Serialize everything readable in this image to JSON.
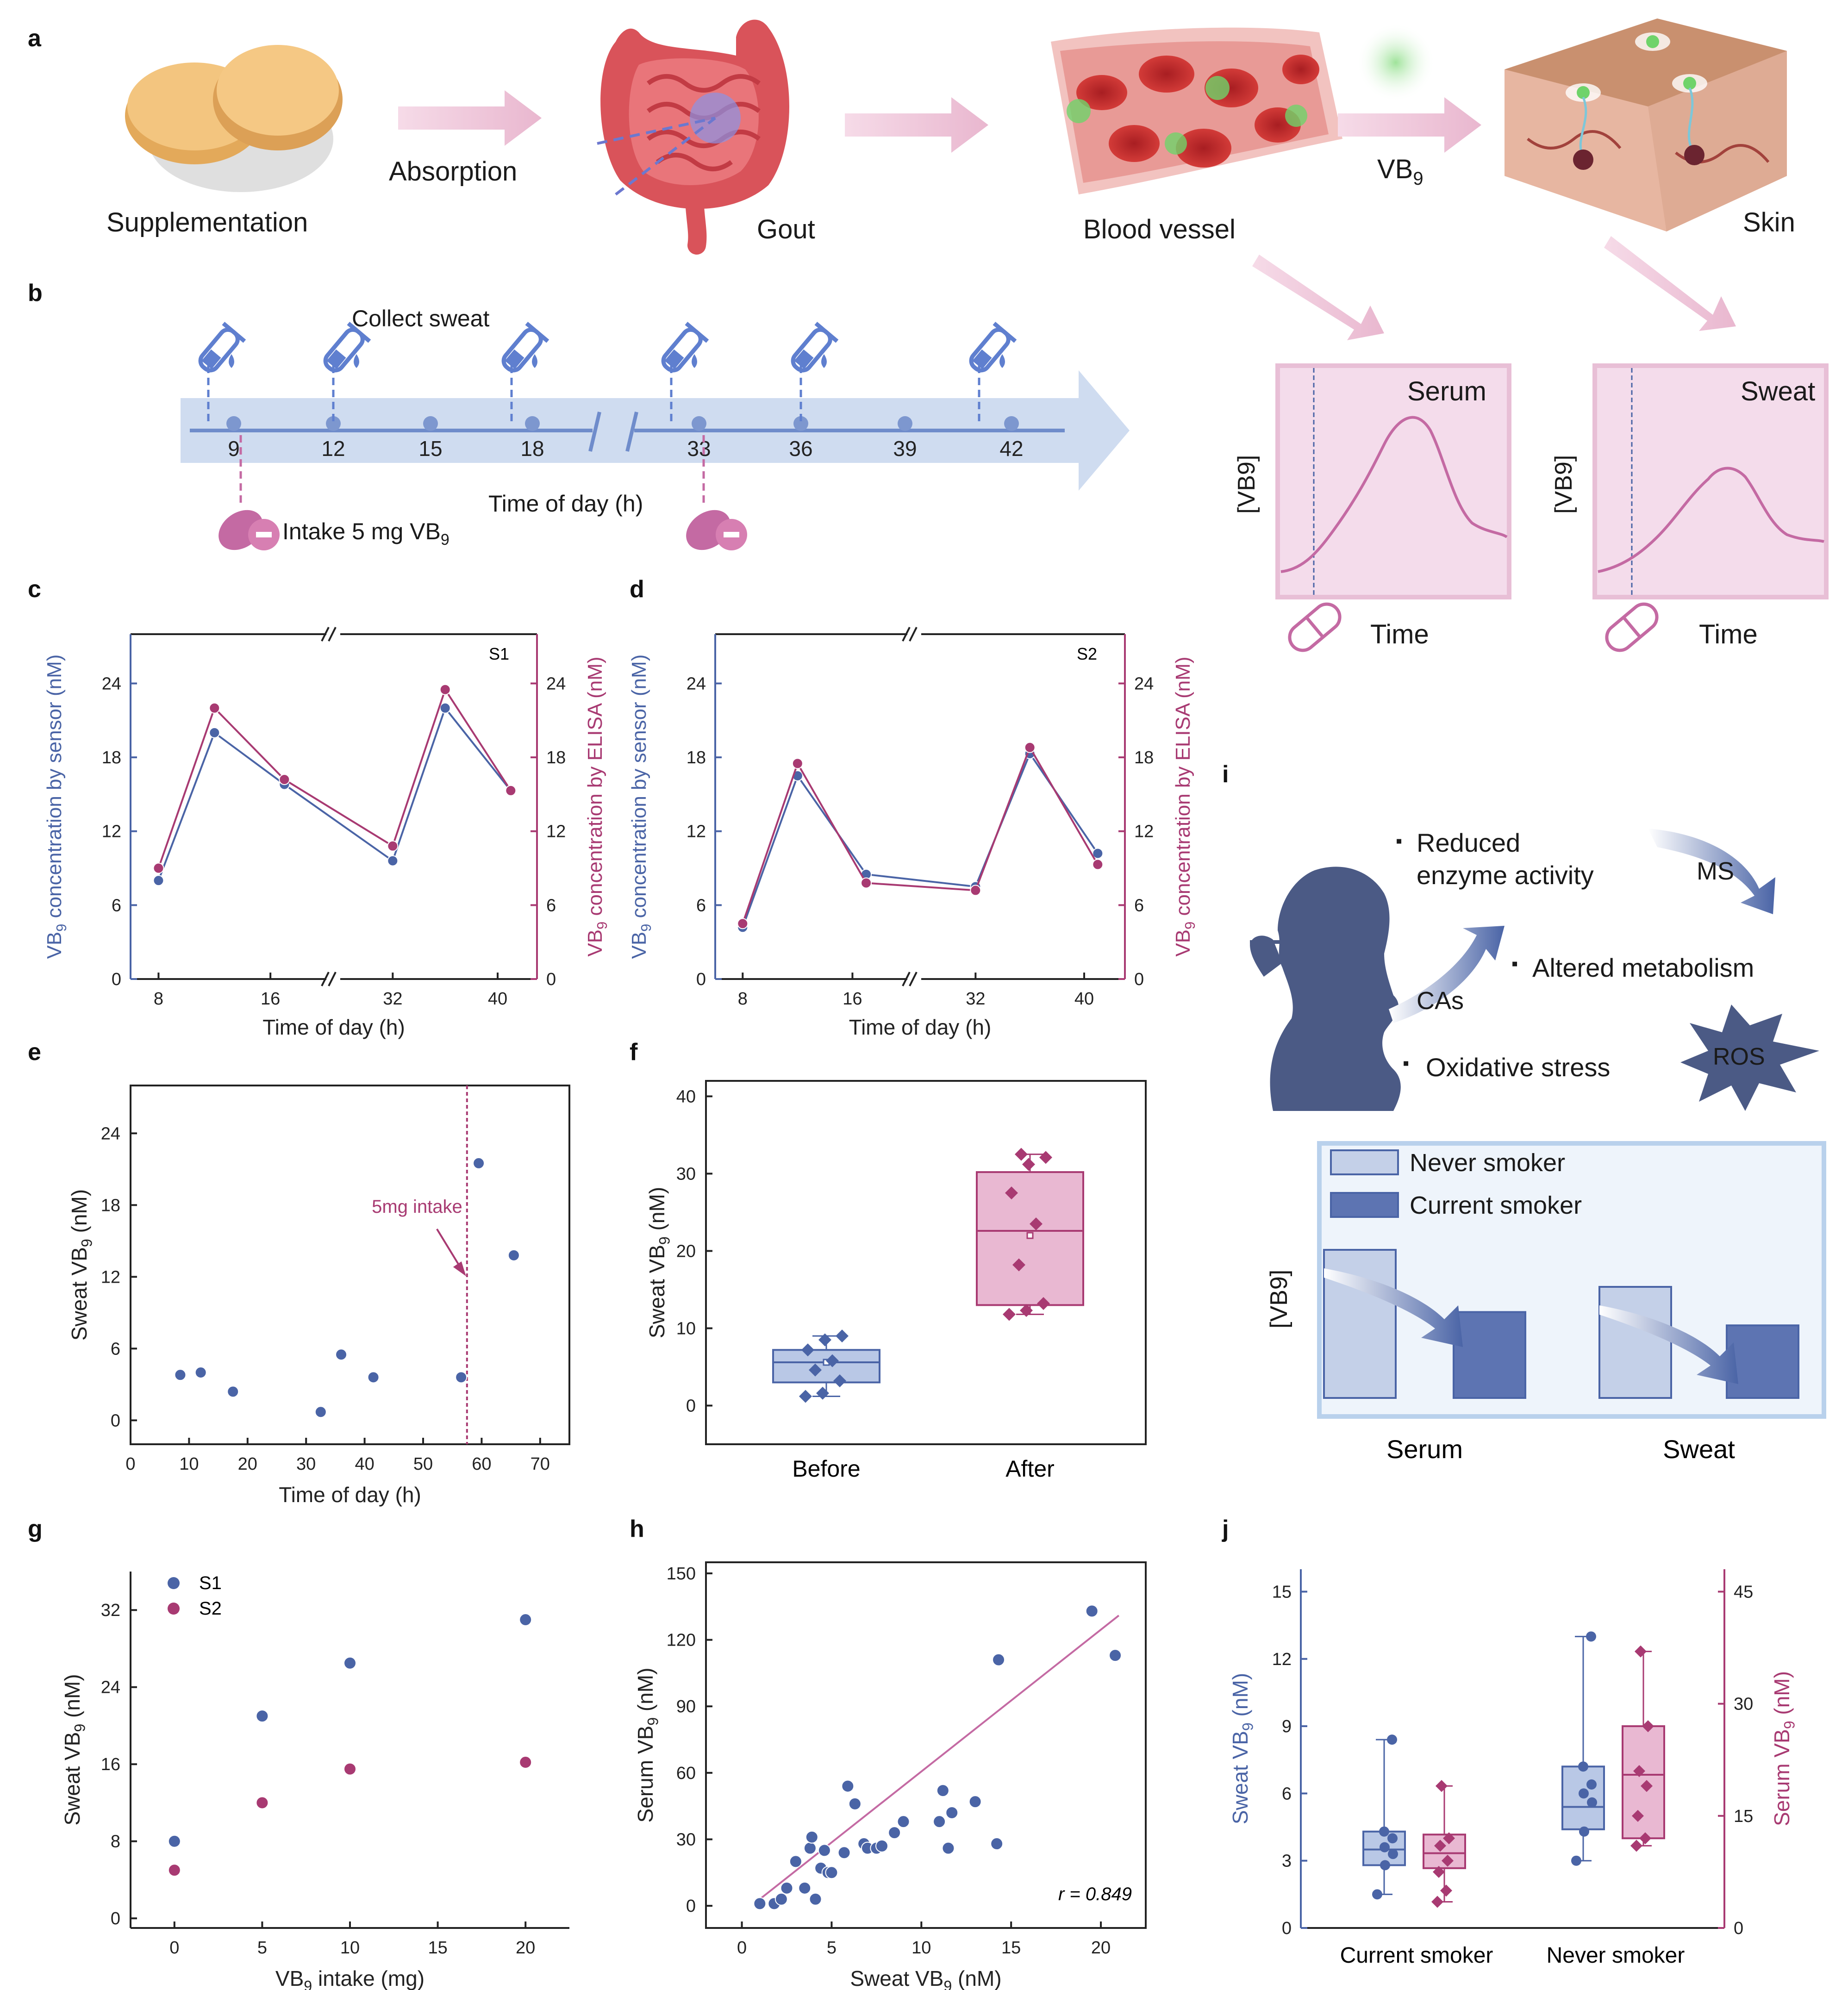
{
  "panel_labels": [
    "a",
    "b",
    "c",
    "d",
    "e",
    "f",
    "g",
    "h",
    "i",
    "j"
  ],
  "panel_a": {
    "supplementation": "Supplementation",
    "absorption": "Absorption",
    "gout": "Gout",
    "blood_vessel": "Blood vessel",
    "vb9": "VB",
    "vb9_sub": "9",
    "skin": "Skin",
    "serum_box": {
      "title": "Serum",
      "ylabel": "[VB9]",
      "xlabel": "Time"
    },
    "sweat_box": {
      "title": "Sweat",
      "ylabel": "[VB9]",
      "xlabel": "Time"
    }
  },
  "panel_b": {
    "collect": "Collect sweat",
    "intake": "Intake 5 mg VB",
    "intake_sub": "9",
    "xlabel": "Time of day (h)",
    "ticks": [
      "9",
      "12",
      "15",
      "18",
      "33",
      "36",
      "39",
      "42"
    ]
  },
  "colors": {
    "blue": "#4a64a6",
    "magenta": "#a83a72",
    "pink": "#e6b6d2",
    "lightblue": "#c4d3ea",
    "boxblue": "#b9c8e6",
    "boxpink": "#e9b8d2"
  },
  "chart_data": [
    {
      "id": "c",
      "type": "line",
      "tag": "S1",
      "x": [
        8,
        12,
        17,
        32,
        36,
        41
      ],
      "series": [
        {
          "name": "sensor",
          "values": [
            8,
            20,
            15.8,
            9.6,
            22,
            15.3
          ]
        },
        {
          "name": "ELISA",
          "values": [
            9,
            22,
            16.2,
            10.8,
            23.5,
            15.3
          ]
        }
      ],
      "xticks": [
        "8",
        "16",
        "32",
        "40"
      ],
      "yticks": [
        "0",
        "6",
        "12",
        "18",
        "24"
      ],
      "xlabel": "Time of day (h)",
      "ylabel_left": "VB9 concentration by sensor (nM)",
      "ylabel_right": "VB9 concentration by ELISA (nM)",
      "ylim": [
        0,
        28
      ]
    },
    {
      "id": "d",
      "type": "line",
      "tag": "S2",
      "x": [
        8,
        12,
        17,
        32,
        36,
        41
      ],
      "series": [
        {
          "name": "sensor",
          "values": [
            4.2,
            16.5,
            8.5,
            7.5,
            18.3,
            10.2
          ]
        },
        {
          "name": "ELISA",
          "values": [
            4.5,
            17.5,
            7.8,
            7.2,
            18.8,
            9.3
          ]
        }
      ],
      "xticks": [
        "8",
        "16",
        "32",
        "40"
      ],
      "yticks": [
        "0",
        "6",
        "12",
        "18",
        "24"
      ],
      "xlabel": "Time of day (h)",
      "ylabel_left": "VB9 concentration by sensor (nM)",
      "ylabel_right": "VB9 concentration by ELISA (nM)",
      "ylim": [
        0,
        28
      ]
    },
    {
      "id": "e",
      "type": "scatter",
      "x": [
        8.5,
        12,
        17.5,
        32.5,
        36,
        41.5,
        56.5,
        59.5,
        65.5
      ],
      "values": [
        3.8,
        4,
        2.4,
        0.7,
        5.5,
        3.6,
        3.6,
        21.5,
        13.8
      ],
      "xticks": [
        "0",
        "10",
        "20",
        "30",
        "40",
        "50",
        "60",
        "70"
      ],
      "yticks": [
        "0",
        "6",
        "12",
        "18",
        "24"
      ],
      "xlabel": "Time of day (h)",
      "ylabel": "Sweat VB9 (nM)",
      "annotation": "5mg intake",
      "vline": 57.5,
      "xlim": [
        0,
        75
      ],
      "ylim": [
        -2,
        28
      ]
    },
    {
      "id": "f",
      "type": "box",
      "categories": [
        "Before",
        "After"
      ],
      "boxes": [
        {
          "q1": 3,
          "median": 5.6,
          "q3": 7.2,
          "min": 1.2,
          "max": 9,
          "mean": 5.6
        },
        {
          "q1": 13,
          "median": 22.6,
          "q3": 30.2,
          "min": 11.8,
          "max": 32.5,
          "mean": 22
        }
      ],
      "points": [
        [
          1.2,
          1.6,
          3.2,
          4.6,
          5.8,
          7.2,
          8.5,
          9
        ],
        [
          11.8,
          12.3,
          13.2,
          18.2,
          23.5,
          27.5,
          31.2,
          32.1,
          32.5
        ]
      ],
      "yticks": [
        "0",
        "10",
        "20",
        "30",
        "40"
      ],
      "ylabel": "Sweat VB9 (nM)",
      "ylim": [
        -5,
        42
      ]
    },
    {
      "id": "g",
      "type": "scatter",
      "legend": [
        "S1",
        "S2"
      ],
      "x": [
        0,
        5,
        10,
        20
      ],
      "series": [
        {
          "name": "S1",
          "values": [
            8,
            21,
            26.5,
            31
          ]
        },
        {
          "name": "S2",
          "values": [
            5,
            12,
            15.5,
            16.2
          ]
        }
      ],
      "xticks": [
        "0",
        "5",
        "10",
        "15",
        "20"
      ],
      "yticks": [
        "0",
        "8",
        "16",
        "24",
        "32"
      ],
      "xlabel": "VB9 intake (mg)",
      "ylabel": "Sweat VB9 (nM)",
      "xlim": [
        -2.5,
        22.5
      ],
      "ylim": [
        -1,
        36
      ]
    },
    {
      "id": "h",
      "type": "scatter",
      "x": [
        1,
        1.8,
        2.2,
        2.5,
        3,
        3.5,
        3.8,
        3.9,
        4.1,
        4.4,
        4.6,
        4.8,
        5,
        5.7,
        5.9,
        6.3,
        6.8,
        7,
        7.5,
        7.8,
        8.5,
        9,
        11,
        11.2,
        11.5,
        11.7,
        13,
        14.2,
        14.3,
        19.5,
        20.8
      ],
      "values": [
        1,
        1,
        3,
        8,
        20,
        8,
        26,
        31,
        3,
        17,
        25,
        15,
        15,
        24,
        54,
        46,
        28,
        26,
        26,
        27,
        33,
        38,
        38,
        52,
        26,
        42,
        47,
        28,
        111,
        133,
        113
      ],
      "xticks": [
        "0",
        "5",
        "10",
        "15",
        "20"
      ],
      "yticks": [
        "0",
        "30",
        "60",
        "90",
        "120",
        "150"
      ],
      "xlabel": "Sweat VB9 (nM)",
      "ylabel": "Serum VB9 (nM)",
      "annotation": "r = 0.849",
      "fit": [
        [
          1,
          3
        ],
        [
          21,
          131
        ]
      ],
      "xlim": [
        -2,
        22.5
      ],
      "ylim": [
        -10,
        155
      ]
    },
    {
      "id": "i",
      "type": "bar",
      "categories": [
        "Serum",
        "Sweat"
      ],
      "series": [
        {
          "name": "Never smoker",
          "values": [
            1.0,
            0.75
          ]
        },
        {
          "name": "Current smoker",
          "values": [
            0.58,
            0.49
          ]
        }
      ],
      "ylabel": "[VB9]"
    },
    {
      "id": "j",
      "type": "box",
      "categories": [
        "Current smoker",
        "Never smoker"
      ],
      "boxes_left": [
        {
          "q1": 2.8,
          "median": 3.5,
          "q3": 4.3,
          "min": 1.5,
          "max": 8.4
        },
        {
          "q1": 4.4,
          "median": 5.4,
          "q3": 7.2,
          "min": 3,
          "max": 13
        }
      ],
      "boxes_right": [
        {
          "q1": 8,
          "median": 10,
          "q3": 12.5,
          "min": 3.5,
          "max": 19
        },
        {
          "q1": 12,
          "median": 20.5,
          "q3": 27,
          "min": 11,
          "max": 37
        }
      ],
      "points_left": [
        [
          1.5,
          2.8,
          3.3,
          3.6,
          4,
          4.3,
          8.4
        ],
        [
          3,
          4.3,
          5.6,
          6,
          6.4,
          7.2,
          13
        ]
      ],
      "points_right": [
        [
          3.5,
          5,
          7.5,
          9,
          11,
          12,
          19
        ],
        [
          11,
          12,
          15,
          19,
          21,
          27,
          37
        ]
      ],
      "yticks_left": [
        "0",
        "3",
        "6",
        "9",
        "12",
        "15"
      ],
      "yticks_right": [
        "0",
        "15",
        "30",
        "45"
      ],
      "ylabel_left": "Sweat VB9 (nM)",
      "ylabel_right": "Serum VB9 (nM)"
    }
  ],
  "panel_i_text": {
    "reduced": "Reduced",
    "enzyme": "enzyme activity",
    "altered": "Altered metabolism",
    "oxidative": "Oxidative stress",
    "ms": "MS",
    "cas": "CAs",
    "ros": "ROS",
    "bullet": "▪"
  }
}
